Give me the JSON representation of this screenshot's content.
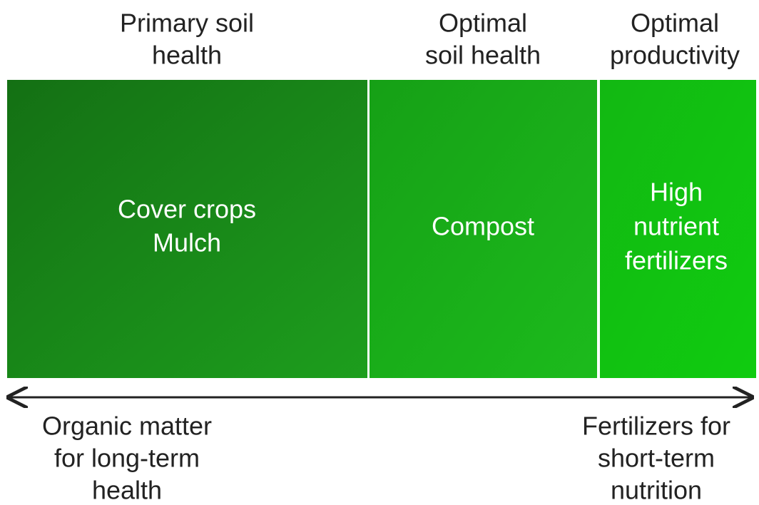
{
  "columns": [
    {
      "header": [
        "Primary soil",
        "health"
      ],
      "items": [
        "Cover crops",
        "Mulch"
      ]
    },
    {
      "header": [
        "Optimal",
        "soil health"
      ],
      "items": [
        "Compost"
      ]
    },
    {
      "header": [
        "Optimal",
        "productivity"
      ],
      "items": [
        "High",
        "nutrient",
        "fertilizers"
      ]
    }
  ],
  "axis": {
    "left": [
      "Organic matter",
      "for long-term",
      "health"
    ],
    "right": [
      "Fertilizers for",
      "short-term",
      "nutrition"
    ]
  }
}
